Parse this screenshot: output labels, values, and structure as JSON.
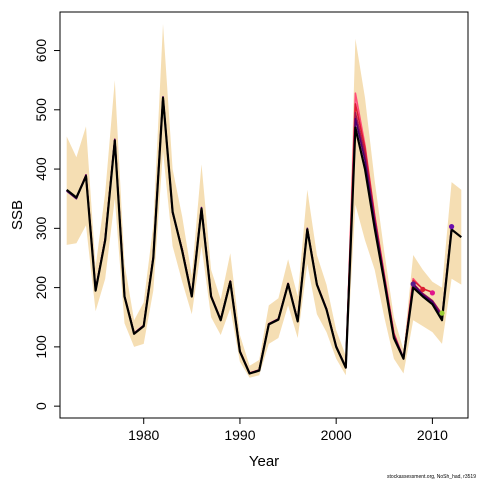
{
  "chart_data": {
    "type": "line",
    "xlabel": "Year",
    "ylabel": "SSB",
    "xlim": [
      1971.3,
      2013.7
    ],
    "ylim": [
      -20,
      665
    ],
    "xticks": [
      1980,
      1990,
      2000,
      2010
    ],
    "yticks": [
      0,
      100,
      200,
      300,
      400,
      500,
      600
    ],
    "band_color": "#f5deb3",
    "credit": "stockassessment.org, NoSh_had, r3519",
    "confidence_band": {
      "x": [
        1972,
        1973,
        1974,
        1975,
        1976,
        1977,
        1978,
        1979,
        1980,
        1981,
        1982,
        1983,
        1984,
        1985,
        1986,
        1987,
        1988,
        1989,
        1990,
        1991,
        1992,
        1993,
        1994,
        1995,
        1996,
        1997,
        1998,
        1999,
        2000,
        2001,
        2002,
        2003,
        2004,
        2005,
        2006,
        2007,
        2008,
        2009,
        2010,
        2011,
        2012,
        2013
      ],
      "lower": [
        272,
        275,
        305,
        160,
        215,
        350,
        140,
        100,
        105,
        195,
        430,
        270,
        210,
        155,
        270,
        150,
        120,
        165,
        75,
        48,
        52,
        105,
        115,
        170,
        115,
        240,
        155,
        125,
        80,
        52,
        340,
        280,
        230,
        150,
        80,
        55,
        145,
        135,
        125,
        105,
        215,
        205
      ],
      "upper": [
        455,
        420,
        472,
        235,
        360,
        550,
        240,
        145,
        175,
        305,
        645,
        400,
        320,
        220,
        408,
        230,
        180,
        258,
        120,
        68,
        78,
        170,
        182,
        248,
        185,
        365,
        255,
        205,
        128,
        85,
        620,
        520,
        380,
        260,
        150,
        95,
        255,
        230,
        210,
        200,
        378,
        365
      ]
    },
    "series": [
      {
        "color": "#000000",
        "x": [
          1972,
          1973,
          1974,
          1975,
          1976,
          1977,
          1978,
          1979,
          1980,
          1981,
          1982,
          1983,
          1984,
          1985,
          1986,
          1987,
          1988,
          1989,
          1990,
          1991,
          1992,
          1993,
          1994,
          1995,
          1996,
          1997,
          1998,
          1999,
          2000,
          2001,
          2002,
          2003,
          2004,
          2005,
          2006,
          2007,
          2008,
          2009,
          2010,
          2011,
          2012,
          2013
        ],
        "y": [
          365,
          352,
          388,
          195,
          280,
          448,
          185,
          122,
          135,
          250,
          520,
          328,
          262,
          185,
          333,
          185,
          145,
          210,
          92,
          55,
          60,
          138,
          146,
          206,
          143,
          298,
          205,
          163,
          100,
          65,
          470,
          400,
          300,
          210,
          115,
          80,
          200,
          185,
          172,
          145,
          298,
          285
        ]
      },
      {
        "color": "#4b006e",
        "x": [
          1972,
          1973,
          1974,
          1975,
          1976,
          1977,
          1978,
          1979,
          1980,
          1981,
          1982,
          1983,
          1984,
          1985,
          1986,
          1987,
          1988,
          1989,
          1990,
          1991,
          1992,
          1993,
          1994,
          1995,
          1996,
          1997,
          1998,
          1999,
          2000,
          2001,
          2002,
          2003,
          2004,
          2005,
          2006,
          2007,
          2008,
          2009,
          2010,
          2011,
          2012
        ],
        "y": [
          363,
          350,
          390,
          196,
          282,
          450,
          186,
          123,
          136,
          252,
          522,
          326,
          264,
          186,
          335,
          186,
          146,
          211,
          93,
          55,
          61,
          139,
          147,
          207,
          144,
          300,
          206,
          164,
          101,
          66,
          485,
          415,
          310,
          215,
          118,
          82,
          205,
          188,
          176,
          150,
          303
        ],
        "end_marker": true
      },
      {
        "color": "#a0154f",
        "x": [
          1972,
          1973,
          1974,
          1975,
          1976,
          1977,
          1978,
          1979,
          1980,
          1981,
          1982,
          1983,
          1984,
          1985,
          1986,
          1987,
          1988,
          1989,
          1990,
          1991,
          1992,
          1993,
          1994,
          1995,
          1996,
          1997,
          1998,
          1999,
          2000,
          2001,
          2002,
          2003,
          2004,
          2005,
          2006,
          2007,
          2008,
          2009,
          2010,
          2011
        ],
        "y": [
          364,
          351,
          390,
          196,
          282,
          450,
          186,
          123,
          136,
          252,
          521,
          327,
          264,
          186,
          334,
          186,
          146,
          211,
          93,
          56,
          61,
          139,
          147,
          207,
          144,
          299,
          206,
          164,
          101,
          65,
          495,
          425,
          315,
          217,
          120,
          80,
          207,
          190,
          178,
          155
        ],
        "end_marker": true
      },
      {
        "color": "#dc1e32",
        "x": [
          1972,
          1973,
          1974,
          1975,
          1976,
          1977,
          1978,
          1979,
          1980,
          1981,
          1982,
          1983,
          1984,
          1985,
          1986,
          1987,
          1988,
          1989,
          1990,
          1991,
          1992,
          1993,
          1994,
          1995,
          1996,
          1997,
          1998,
          1999,
          2000,
          2001,
          2002,
          2003,
          2004,
          2005,
          2006,
          2007,
          2008,
          2009,
          2010
        ],
        "y": [
          364,
          351,
          390,
          196,
          282,
          450,
          186,
          123,
          136,
          252,
          521,
          327,
          264,
          186,
          334,
          186,
          146,
          211,
          93,
          56,
          61,
          139,
          147,
          207,
          144,
          299,
          206,
          164,
          101,
          65,
          510,
          435,
          320,
          220,
          122,
          80,
          212,
          198,
          192
        ],
        "end_marker": true
      },
      {
        "color": "#ff4f7a",
        "x": [
          1972,
          1973,
          1974,
          1975,
          1976,
          1977,
          1978,
          1979,
          1980,
          1981,
          1982,
          1983,
          1984,
          1985,
          1986,
          1987,
          1988,
          1989,
          1990,
          1991,
          1992,
          1993,
          1994,
          1995,
          1996,
          1997,
          1998,
          1999,
          2000,
          2001,
          2002,
          2003,
          2004,
          2005,
          2006,
          2007,
          2008,
          2009
        ],
        "y": [
          364,
          351,
          390,
          196,
          282,
          450,
          186,
          123,
          136,
          252,
          521,
          327,
          264,
          186,
          334,
          186,
          146,
          211,
          93,
          56,
          61,
          139,
          147,
          207,
          144,
          299,
          206,
          164,
          101,
          65,
          528,
          440,
          322,
          222,
          123,
          80,
          215,
          197
        ],
        "end_marker": true
      },
      {
        "color": "#ff9fd0",
        "x": [
          1972,
          1973,
          1974,
          1975,
          1976,
          1977,
          1978,
          1979,
          1980,
          1981,
          1982,
          1983,
          1984,
          1985,
          1986,
          1987,
          1988,
          1989,
          1990,
          1991,
          1992,
          1993,
          1994,
          1995,
          1996,
          1997,
          1998,
          1999,
          2000,
          2001,
          2002,
          2003,
          2004,
          2005,
          2006,
          2007,
          2008
        ],
        "y": [
          364,
          351,
          390,
          196,
          282,
          450,
          186,
          123,
          136,
          252,
          521,
          327,
          264,
          186,
          334,
          186,
          146,
          211,
          93,
          56,
          61,
          139,
          147,
          207,
          144,
          299,
          206,
          164,
          101,
          65,
          518,
          438,
          320,
          220,
          122,
          80,
          210
        ],
        "end_marker": false
      }
    ],
    "markers": [
      {
        "x": 2008,
        "y": 206,
        "color": "#5a1a8c"
      },
      {
        "x": 2009,
        "y": 197,
        "color": "#dc1e32"
      },
      {
        "x": 2010,
        "y": 191,
        "color": "#e0148c"
      },
      {
        "x": 2011,
        "y": 157,
        "color": "#9acd32"
      },
      {
        "x": 2012,
        "y": 303,
        "color": "#6a0dad"
      }
    ]
  }
}
